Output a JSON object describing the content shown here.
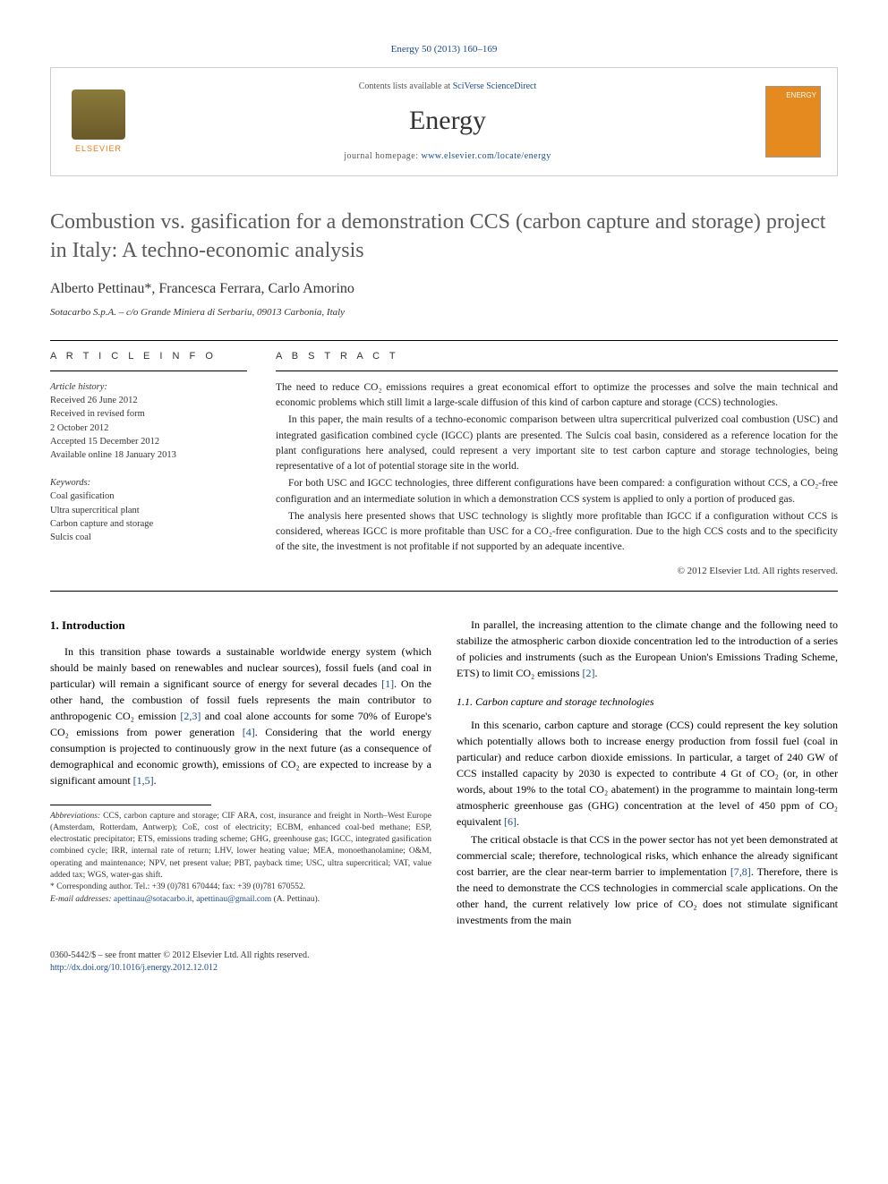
{
  "citation": "Energy 50 (2013) 160–169",
  "header": {
    "contents_prefix": "Contents lists available at ",
    "contents_linktext": "SciVerse ScienceDirect",
    "journal": "Energy",
    "homepage_prefix": "journal homepage: ",
    "homepage_url": "www.elsevier.com/locate/energy",
    "publisher": "ELSEVIER",
    "cover_label": "ENERGY"
  },
  "title": "Combustion vs. gasification for a demonstration CCS (carbon capture and storage) project in Italy: A techno-economic analysis",
  "authors": "Alberto Pettinau*, Francesca Ferrara, Carlo Amorino",
  "affiliation": "Sotacarbo S.p.A. – c/o Grande Miniera di Serbariu, 09013 Carbonia, Italy",
  "info": {
    "label": "A R T I C L E   I N F O",
    "history_heading": "Article history:",
    "received": "Received 26 June 2012",
    "revised1": "Received in revised form",
    "revised2": "2 October 2012",
    "accepted": "Accepted 15 December 2012",
    "online": "Available online 18 January 2013",
    "keywords_heading": "Keywords:",
    "kw1": "Coal gasification",
    "kw2": "Ultra supercritical plant",
    "kw3": "Carbon capture and storage",
    "kw4": "Sulcis coal"
  },
  "abstract": {
    "label": "A B S T R A C T",
    "p1": "The need to reduce CO₂ emissions requires a great economical effort to optimize the processes and solve the main technical and economic problems which still limit a large-scale diffusion of this kind of carbon capture and storage (CCS) technologies.",
    "p2": "In this paper, the main results of a techno-economic comparison between ultra supercritical pulverized coal combustion (USC) and integrated gasification combined cycle (IGCC) plants are presented. The Sulcis coal basin, considered as a reference location for the plant configurations here analysed, could represent a very important site to test carbon capture and storage technologies, being representative of a lot of potential storage site in the world.",
    "p3": "For both USC and IGCC technologies, three different configurations have been compared: a configuration without CCS, a CO₂-free configuration and an intermediate solution in which a demonstration CCS system is applied to only a portion of produced gas.",
    "p4": "The analysis here presented shows that USC technology is slightly more profitable than IGCC if a configuration without CCS is considered, whereas IGCC is more profitable than USC for a CO₂-free configuration. Due to the high CCS costs and to the specificity of the site, the investment is not profitable if not supported by an adequate incentive.",
    "copyright": "© 2012 Elsevier Ltd. All rights reserved."
  },
  "body": {
    "h_intro": "1. Introduction",
    "intro_p1a": "In this transition phase towards a sustainable worldwide energy system (which should be mainly based on renewables and nuclear sources), fossil fuels (and coal in particular) will remain a significant source of energy for several decades ",
    "ref1": "[1]",
    "intro_p1b": ". On the other hand, the combustion of fossil fuels represents the main contributor to anthropogenic CO₂ emission ",
    "ref23": "[2,3]",
    "intro_p1c": " and coal alone accounts for some 70% of Europe's CO₂ emissions from power generation ",
    "ref4": "[4]",
    "intro_p1d": ". Considering that the world energy consumption is projected to continuously grow in the next future (as a consequence of demographical and economic growth), emissions of CO₂ are expected to increase by a significant amount ",
    "ref15": "[1,5]",
    "intro_p1e": ".",
    "intro_p2a": "In parallel, the increasing attention to the climate change and the following need to stabilize the atmospheric carbon dioxide concentration led to the introduction of a series of policies and instruments (such as the European Union's Emissions Trading Scheme, ETS) to limit CO₂ emissions ",
    "ref2": "[2]",
    "intro_p2b": ".",
    "h_11": "1.1. Carbon capture and storage technologies",
    "s11_p1a": "In this scenario, carbon capture and storage (CCS) could represent the key solution which potentially allows both to increase energy production from fossil fuel (coal in particular) and reduce carbon dioxide emissions. In particular, a target of 240 GW of CCS installed capacity by 2030 is expected to contribute 4 Gt of CO₂ (or, in other words, about 19% to the total CO₂ abatement) in the programme to maintain long-term atmospheric greenhouse gas (GHG) concentration at the level of 450 ppm of CO₂ equivalent ",
    "ref6": "[6]",
    "s11_p1b": ".",
    "s11_p2a": "The critical obstacle is that CCS in the power sector has not yet been demonstrated at commercial scale; therefore, technological risks, which enhance the already significant cost barrier, are the clear near-term barrier to implementation ",
    "ref78": "[7,8]",
    "s11_p2b": ". Therefore, there is the need to demonstrate the CCS technologies in commercial scale applications. On the other hand, the current relatively low price of CO₂ does not stimulate significant investments from the main"
  },
  "footnotes": {
    "abbrev_label": "Abbreviations:",
    "abbrev_text": " CCS, carbon capture and storage; CIF ARA, cost, insurance and freight in North–West Europe (Amsterdam, Rotterdam, Antwerp); CoE, cost of electricity; ECBM, enhanced coal-bed methane; ESP, electrostatic precipitator; ETS, emissions trading scheme; GHG, greenhouse gas; IGCC, integrated gasification combined cycle; IRR, internal rate of return; LHV, lower heating value; MEA, monoethanolamine; O&M, operating and maintenance; NPV, net present value; PBT, payback time; USC, ultra supercritical; VAT, value added tax; WGS, water-gas shift.",
    "corr": "* Corresponding author. Tel.: +39 (0)781 670444; fax: +39 (0)781 670552.",
    "email_label": "E-mail addresses:",
    "email1": "apettinau@sotacarbo.it",
    "email2": "apettinau@gmail.com",
    "email_who": " (A. Pettinau)."
  },
  "footer": {
    "issn": "0360-5442/$ – see front matter © 2012 Elsevier Ltd. All rights reserved.",
    "doi": "http://dx.doi.org/10.1016/j.energy.2012.12.012"
  },
  "colors": {
    "link": "#1a4b8c",
    "elsevier_orange": "#e67817",
    "cover_bg": "#e58a1f"
  }
}
